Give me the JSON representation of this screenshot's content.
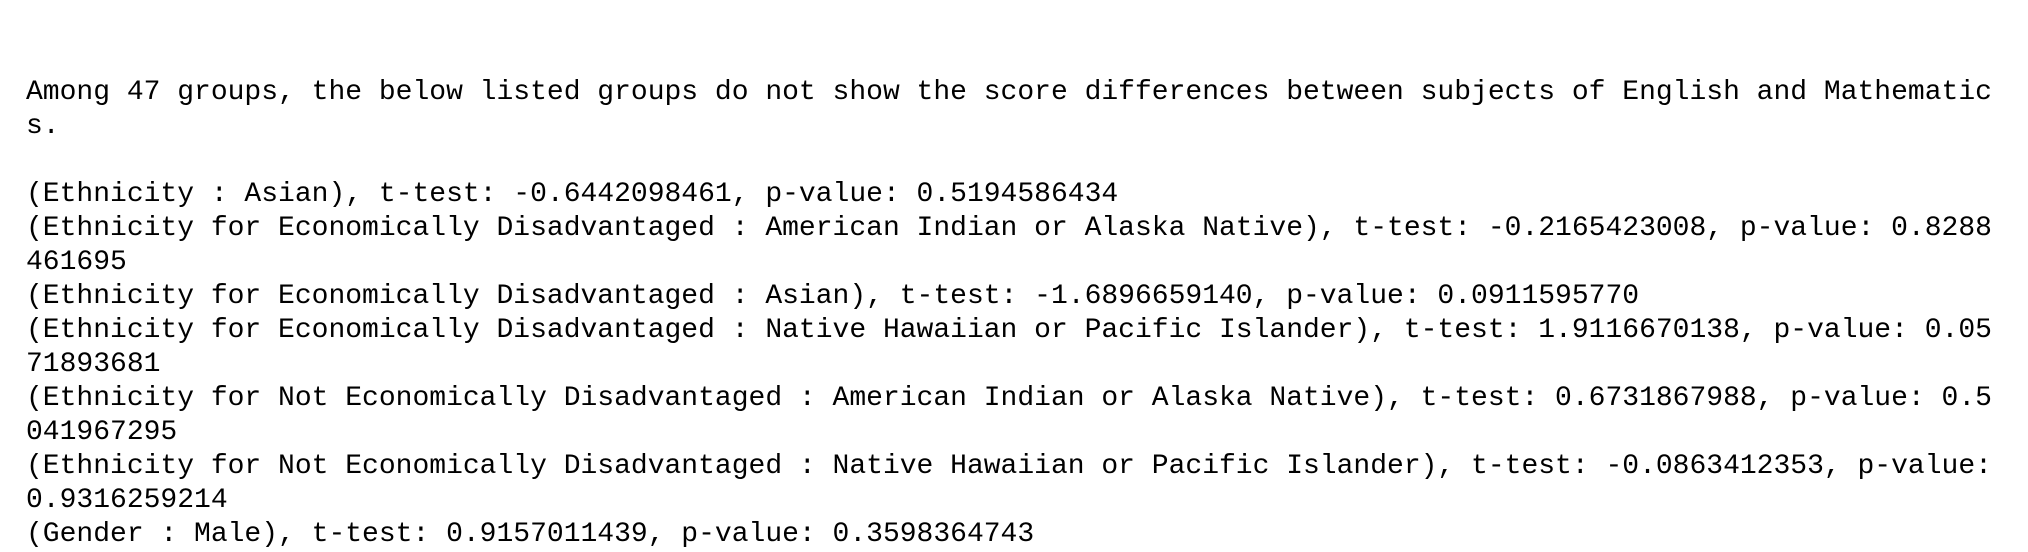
{
  "output": {
    "intro": "Among 47 groups, the below listed groups do not show the score differences between subjects of English and Mathematics.",
    "lines": [
      "(Ethnicity : Asian), t-test: -0.6442098461, p-value: 0.5194586434",
      "(Ethnicity for Economically Disadvantaged : American Indian or Alaska Native), t-test: -0.2165423008, p-value: 0.8288461695",
      "(Ethnicity for Economically Disadvantaged : Asian), t-test: -1.6896659140, p-value: 0.0911595770",
      "(Ethnicity for Economically Disadvantaged : Native Hawaiian or Pacific Islander), t-test: 1.9116670138, p-value: 0.0571893681",
      "(Ethnicity for Not Economically Disadvantaged : American Indian or Alaska Native), t-test: 0.6731867988, p-value: 0.5041967295",
      "(Ethnicity for Not Economically Disadvantaged : Native Hawaiian or Pacific Islander), t-test: -0.0863412353, p-value: 0.9316259214",
      "(Gender : Male), t-test: 0.9157011439, p-value: 0.3598364743"
    ]
  }
}
